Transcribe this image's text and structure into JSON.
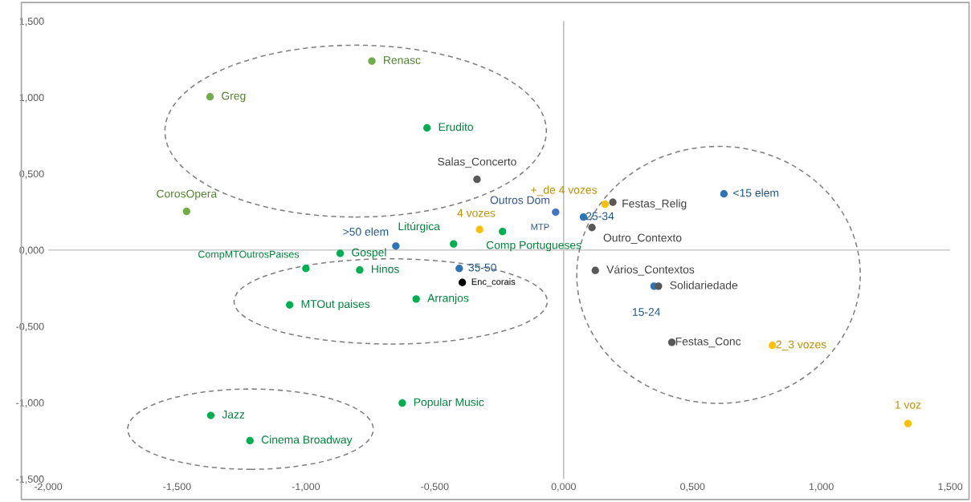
{
  "chart_data": {
    "type": "scatter",
    "marker": "circle",
    "grid": false,
    "ref_lines": [
      {
        "axis": "x",
        "value": 0,
        "color": "#bfbfbf"
      },
      {
        "axis": "y",
        "value": 0,
        "color": "#c9c9c9"
      }
    ],
    "xlim": [
      -2.0,
      1.5
    ],
    "ylim": [
      -1.5,
      1.5
    ],
    "xticks": [
      {
        "value": -2.0,
        "label": "-2,000"
      },
      {
        "value": -1.5,
        "label": "-1,500"
      },
      {
        "value": -1.0,
        "label": "-1,000"
      },
      {
        "value": -0.5,
        "label": "-0,500"
      },
      {
        "value": 0.0,
        "label": "0,000"
      },
      {
        "value": 0.5,
        "label": "0,500"
      },
      {
        "value": 1.0,
        "label": "1,000"
      },
      {
        "value": 1.5,
        "label": "1,500"
      }
    ],
    "yticks": [
      {
        "value": -1.5,
        "label": "-1,500"
      },
      {
        "value": -1.0,
        "label": "-1,000"
      },
      {
        "value": -0.5,
        "label": "-0,500"
      },
      {
        "value": 0.0,
        "label": "0,000"
      },
      {
        "value": 0.5,
        "label": "0,500"
      },
      {
        "value": 1.0,
        "label": "1,000"
      },
      {
        "value": 1.5,
        "label": "1,500"
      }
    ],
    "series": [
      {
        "x": [
          -0.744,
          -1.372,
          -0.53,
          -1.463,
          -0.427,
          -0.237,
          -0.867,
          -1.0,
          -0.791,
          -1.063,
          -0.572,
          -0.626,
          -1.369,
          -1.217,
          -0.031
        ],
        "values": [
          1.238,
          1.004,
          0.8,
          0.253,
          0.04,
          0.121,
          -0.022,
          -0.121,
          -0.131,
          -0.36,
          -0.321,
          -1.003,
          -1.084,
          -1.249,
          0.248
        ],
        "colors": [
          "#70ad47",
          "#70ad47",
          "#00b050",
          "#70ad47",
          "#00b050",
          "#00b050",
          "#00b050",
          "#00b050",
          "#00b050",
          "#00b050",
          "#00b050",
          "#00b050",
          "#00b050",
          "#00b050",
          "#4472c4"
        ]
      },
      {
        "color": "#2e75b6",
        "x": [
          0.622,
          0.077,
          -0.651,
          -0.405,
          0.351
        ],
        "values": [
          0.368,
          0.216,
          0.026,
          -0.121,
          -0.237
        ]
      },
      {
        "x": [
          -0.336,
          0.191,
          0.11,
          0.123,
          0.368,
          0.42,
          -0.393
        ],
        "values": [
          0.463,
          0.313,
          0.147,
          -0.134,
          -0.237,
          -0.605,
          -0.213
        ],
        "colors": [
          "#595959",
          "#595959",
          "#595959",
          "#595959",
          "#595959",
          "#595959",
          "#000000"
        ]
      },
      {
        "color": "#ffc000",
        "x": [
          0.161,
          -0.326,
          0.81,
          1.336
        ],
        "values": [
          0.3,
          0.134,
          -0.625,
          -1.137
        ]
      }
    ],
    "annotations": [
      {
        "text": "Renasc",
        "x": -0.744,
        "y": 1.238
      },
      {
        "text": "Greg",
        "x": -1.372,
        "y": 1.004
      },
      {
        "text": "Erudito",
        "x": -0.53,
        "y": 0.8
      },
      {
        "text": "Salas_Concerto",
        "x": -0.336,
        "y": 0.463
      },
      {
        "text": "CorosOpera",
        "x": -1.463,
        "y": 0.253
      },
      {
        "text": "Outros Dom",
        "x": -0.031,
        "y": 0.248
      },
      {
        "text": "MTP",
        "x": -0.031,
        "y": 0.248
      },
      {
        "text": "+_de 4 vozes",
        "x": 0.161,
        "y": 0.3
      },
      {
        "text": "Festas_Relig",
        "x": 0.191,
        "y": 0.313
      },
      {
        "text": "<15 elem",
        "x": 0.622,
        "y": 0.368
      },
      {
        "text": "25-34",
        "x": 0.077,
        "y": 0.216
      },
      {
        "text": "Outro_Contexto",
        "x": 0.11,
        "y": 0.147
      },
      {
        "text": "4 vozes",
        "x": -0.326,
        "y": 0.134
      },
      {
        "text": "Comp Portugueses",
        "x": -0.237,
        "y": 0.121
      },
      {
        "text": "Litúrgica",
        "x": -0.427,
        "y": 0.04
      },
      {
        "text": ">50 elem",
        "x": -0.651,
        "y": 0.026
      },
      {
        "text": "Gospel",
        "x": -0.867,
        "y": -0.022
      },
      {
        "text": "CompMTOutrosPaises",
        "x": -1.0,
        "y": -0.121
      },
      {
        "text": "Hinos",
        "x": -0.791,
        "y": -0.131
      },
      {
        "text": "35-50",
        "x": -0.405,
        "y": -0.121
      },
      {
        "text": "Enc_corais",
        "x": -0.393,
        "y": -0.213
      },
      {
        "text": "MTOut paises",
        "x": -1.063,
        "y": -0.36
      },
      {
        "text": "Arranjos",
        "x": -0.572,
        "y": -0.321
      },
      {
        "text": "Vários_Contextos",
        "x": 0.123,
        "y": -0.134
      },
      {
        "text": "15-24",
        "x": 0.351,
        "y": -0.237
      },
      {
        "text": "Solidariedade",
        "x": 0.368,
        "y": -0.237
      },
      {
        "text": "Festas_Conc",
        "x": 0.42,
        "y": -0.605
      },
      {
        "text": "2_3 vozes",
        "x": 0.81,
        "y": -0.625
      },
      {
        "text": "1 voz",
        "x": 1.336,
        "y": -1.137
      },
      {
        "text": "Popular Music",
        "x": -0.626,
        "y": -1.003
      },
      {
        "text": "Jazz",
        "x": -1.369,
        "y": -1.084
      },
      {
        "text": "Cinema Broadway",
        "x": -1.217,
        "y": -1.249
      }
    ]
  }
}
